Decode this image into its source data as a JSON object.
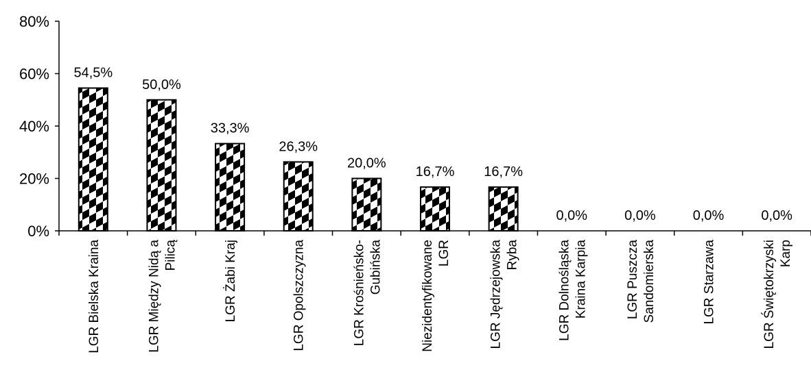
{
  "chart_data": {
    "type": "bar",
    "categories": [
      [
        "LGR Bielska Kraina"
      ],
      [
        "LGR Między Nidą a",
        "Pilicą"
      ],
      [
        "LGR Żabi Kraj"
      ],
      [
        "LGR Opolszczyzna"
      ],
      [
        "LGR Krośnieńsko-",
        "Gubińska"
      ],
      [
        "Niezidentyfikowane",
        "LGR"
      ],
      [
        "LGR Jędrzejowska",
        "Ryba"
      ],
      [
        "LGR Dolnośląska",
        "Kraina Karpia"
      ],
      [
        "LGR Puszcza",
        "Sandomierska"
      ],
      [
        "LGR Starzawa"
      ],
      [
        "LGR Świętokrzyski",
        "Karp"
      ]
    ],
    "values": [
      54.5,
      50.0,
      33.3,
      26.3,
      20.0,
      16.7,
      16.7,
      0.0,
      0.0,
      0.0,
      0.0
    ],
    "data_labels": [
      "54,5%",
      "50,0%",
      "33,3%",
      "26,3%",
      "20,0%",
      "16,7%",
      "16,7%",
      "0,0%",
      "0,0%",
      "0,0%",
      "0,0%"
    ],
    "ylim": [
      0,
      80
    ],
    "y_ticks": [
      0,
      20,
      40,
      60,
      80
    ],
    "y_tick_labels": [
      "0%",
      "20%",
      "40%",
      "60%",
      "80%"
    ],
    "grid": false,
    "legend": "none",
    "bar_pattern": "black-white checker",
    "colors": {
      "bar_fill": "#000000",
      "bar_pattern_bg": "#ffffff",
      "axis": "#000000"
    }
  }
}
